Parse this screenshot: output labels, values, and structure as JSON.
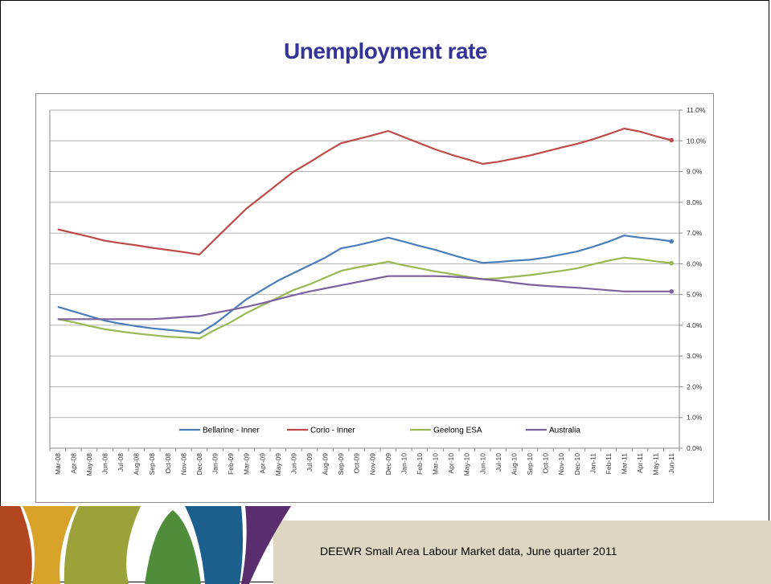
{
  "slide": {
    "title": "Unemployment rate",
    "footer": "DEEWR Small Area Labour Market data, June quarter 2011"
  },
  "colors": {
    "title": "#333399",
    "band": [
      "#b2471f",
      "#d9a32a",
      "#9ba23a",
      "#4f8d3b",
      "#1b5f8c",
      "#5a2d6e"
    ],
    "footer_bg": "#ddd6c2"
  },
  "chart_data": {
    "type": "line",
    "x": [
      "Mar-08",
      "Apr-08",
      "May-08",
      "Jun-08",
      "Jul-08",
      "Aug-08",
      "Sep-08",
      "Oct-08",
      "Nov-08",
      "Dec-08",
      "Jan-09",
      "Feb-09",
      "Mar-09",
      "Apr-09",
      "May-09",
      "Jun-09",
      "Jul-09",
      "Aug-09",
      "Sep-09",
      "Oct-09",
      "Nov-09",
      "Dec-09",
      "Jan-10",
      "Feb-10",
      "Mar-10",
      "Apr-10",
      "May-10",
      "Jun-10",
      "Jul-10",
      "Aug-10",
      "Sep-10",
      "Oct-10",
      "Nov-10",
      "Dec-10",
      "Jan-11",
      "Feb-11",
      "Mar-11",
      "Apr-11",
      "May-11",
      "Jun-11"
    ],
    "y_ticks": [
      "0.0%",
      "1.0%",
      "2.0%",
      "3.0%",
      "4.0%",
      "5.0%",
      "6.0%",
      "7.0%",
      "8.0%",
      "9.0%",
      "10.0%",
      "11.0%"
    ],
    "ylim": [
      0,
      11
    ],
    "y_axis_side": "right",
    "grid": true,
    "legend_placement": "bottom",
    "series": [
      {
        "name": "Bellarine - Inner",
        "color": "#4a7ebb",
        "values": [
          4.6,
          4.45,
          4.3,
          4.15,
          4.05,
          3.97,
          3.9,
          3.85,
          3.8,
          3.74,
          4.05,
          4.45,
          4.85,
          5.15,
          5.45,
          5.7,
          5.95,
          6.2,
          6.5,
          6.6,
          6.72,
          6.85,
          6.72,
          6.58,
          6.45,
          6.3,
          6.15,
          6.03,
          6.06,
          6.1,
          6.13,
          6.2,
          6.3,
          6.4,
          6.55,
          6.72,
          6.92,
          6.85,
          6.8,
          6.73
        ]
      },
      {
        "name": "Corio - Inner",
        "color": "#be4b48",
        "values": [
          7.12,
          7.0,
          6.88,
          6.75,
          6.67,
          6.6,
          6.52,
          6.45,
          6.38,
          6.3,
          6.8,
          7.3,
          7.8,
          8.2,
          8.6,
          9.0,
          9.3,
          9.62,
          9.92,
          10.05,
          10.18,
          10.32,
          10.12,
          9.92,
          9.72,
          9.55,
          9.4,
          9.25,
          9.32,
          9.42,
          9.52,
          9.65,
          9.78,
          9.9,
          10.05,
          10.22,
          10.4,
          10.3,
          10.15,
          10.02
        ]
      },
      {
        "name": "Geelong ESA",
        "color": "#98b954",
        "values": [
          4.2,
          4.1,
          3.98,
          3.87,
          3.8,
          3.73,
          3.68,
          3.63,
          3.6,
          3.57,
          3.85,
          4.1,
          4.4,
          4.65,
          4.9,
          5.15,
          5.33,
          5.55,
          5.77,
          5.88,
          5.97,
          6.07,
          5.95,
          5.85,
          5.75,
          5.67,
          5.58,
          5.5,
          5.53,
          5.58,
          5.63,
          5.7,
          5.77,
          5.85,
          5.98,
          6.1,
          6.2,
          6.15,
          6.08,
          6.02
        ]
      },
      {
        "name": "Australia",
        "color": "#7d60a0",
        "values": [
          4.2,
          4.2,
          4.2,
          4.2,
          4.2,
          4.2,
          4.2,
          4.23,
          4.27,
          4.3,
          4.4,
          4.5,
          4.6,
          4.72,
          4.85,
          4.98,
          5.1,
          5.2,
          5.3,
          5.4,
          5.5,
          5.6,
          5.6,
          5.6,
          5.6,
          5.58,
          5.55,
          5.5,
          5.45,
          5.38,
          5.32,
          5.28,
          5.25,
          5.22,
          5.18,
          5.14,
          5.1,
          5.1,
          5.1,
          5.1
        ]
      }
    ]
  }
}
